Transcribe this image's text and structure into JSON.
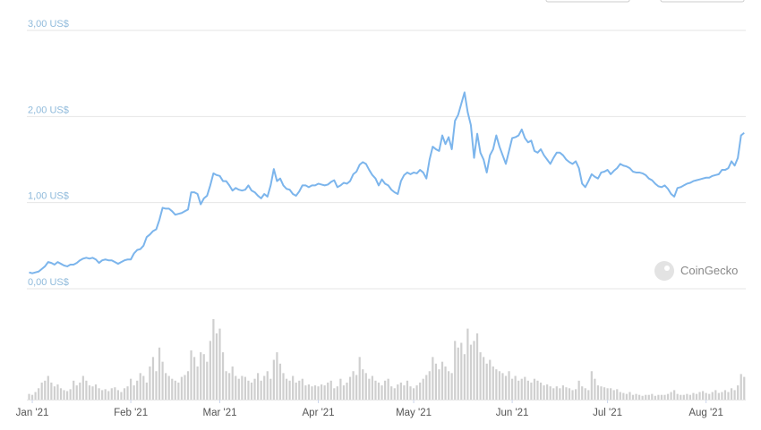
{
  "chart_data": {
    "type": "line",
    "series": [
      {
        "type": "line",
        "color": "#7cb5ec",
        "values": [
          0.19,
          0.18,
          0.19,
          0.2,
          0.23,
          0.26,
          0.31,
          0.3,
          0.28,
          0.31,
          0.29,
          0.27,
          0.26,
          0.28,
          0.28,
          0.3,
          0.33,
          0.35,
          0.36,
          0.35,
          0.36,
          0.34,
          0.3,
          0.33,
          0.34,
          0.33,
          0.33,
          0.31,
          0.29,
          0.31,
          0.33,
          0.34,
          0.34,
          0.41,
          0.45,
          0.46,
          0.5,
          0.6,
          0.63,
          0.67,
          0.69,
          0.8,
          0.94,
          0.93,
          0.93,
          0.9,
          0.86,
          0.87,
          0.88,
          0.9,
          0.92,
          1.12,
          1.12,
          1.1,
          0.98,
          1.05,
          1.08,
          1.2,
          1.34,
          1.32,
          1.31,
          1.25,
          1.25,
          1.2,
          1.14,
          1.17,
          1.15,
          1.14,
          1.15,
          1.2,
          1.14,
          1.12,
          1.08,
          1.05,
          1.1,
          1.07,
          1.2,
          1.39,
          1.25,
          1.28,
          1.2,
          1.16,
          1.15,
          1.1,
          1.08,
          1.13,
          1.2,
          1.2,
          1.18,
          1.2,
          1.2,
          1.22,
          1.21,
          1.2,
          1.21,
          1.24,
          1.26,
          1.18,
          1.2,
          1.23,
          1.22,
          1.25,
          1.33,
          1.36,
          1.44,
          1.47,
          1.45,
          1.38,
          1.32,
          1.28,
          1.2,
          1.27,
          1.22,
          1.2,
          1.15,
          1.12,
          1.1,
          1.25,
          1.32,
          1.35,
          1.33,
          1.35,
          1.34,
          1.38,
          1.35,
          1.28,
          1.5,
          1.65,
          1.62,
          1.6,
          1.78,
          1.68,
          1.76,
          1.62,
          1.95,
          2.02,
          2.15,
          2.28,
          2.05,
          1.9,
          1.52,
          1.8,
          1.58,
          1.5,
          1.35,
          1.55,
          1.62,
          1.78,
          1.65,
          1.55,
          1.45,
          1.6,
          1.75,
          1.76,
          1.78,
          1.85,
          1.75,
          1.7,
          1.72,
          1.6,
          1.58,
          1.62,
          1.55,
          1.5,
          1.45,
          1.52,
          1.58,
          1.58,
          1.55,
          1.5,
          1.47,
          1.45,
          1.48,
          1.4,
          1.22,
          1.18,
          1.25,
          1.33,
          1.3,
          1.28,
          1.35,
          1.36,
          1.38,
          1.33,
          1.37,
          1.4,
          1.45,
          1.43,
          1.42,
          1.4,
          1.36,
          1.35,
          1.35,
          1.34,
          1.32,
          1.28,
          1.26,
          1.22,
          1.19,
          1.18,
          1.2,
          1.16,
          1.1,
          1.07,
          1.17,
          1.18,
          1.2,
          1.22,
          1.23,
          1.25,
          1.26,
          1.27,
          1.28,
          1.29,
          1.29,
          1.31,
          1.32,
          1.33,
          1.38,
          1.38,
          1.4,
          1.48,
          1.43,
          1.52,
          1.78,
          1.81
        ]
      },
      {
        "type": "bar",
        "color": "#cfcfcf",
        "values": [
          6,
          5,
          8,
          12,
          18,
          20,
          25,
          18,
          14,
          16,
          12,
          10,
          9,
          11,
          20,
          15,
          18,
          25,
          20,
          15,
          14,
          16,
          12,
          10,
          11,
          9,
          12,
          13,
          10,
          8,
          12,
          14,
          22,
          15,
          20,
          28,
          25,
          18,
          35,
          45,
          30,
          55,
          40,
          28,
          25,
          22,
          20,
          18,
          24,
          26,
          30,
          52,
          45,
          35,
          50,
          48,
          40,
          62,
          85,
          70,
          75,
          50,
          30,
          28,
          35,
          25,
          22,
          25,
          24,
          20,
          18,
          22,
          28,
          20,
          25,
          30,
          22,
          42,
          50,
          38,
          28,
          22,
          20,
          25,
          18,
          20,
          22,
          15,
          16,
          14,
          15,
          14,
          16,
          15,
          18,
          20,
          12,
          14,
          22,
          15,
          18,
          24,
          30,
          26,
          45,
          32,
          28,
          22,
          25,
          20,
          18,
          15,
          20,
          22,
          14,
          12,
          16,
          18,
          15,
          20,
          14,
          12,
          15,
          18,
          22,
          26,
          30,
          45,
          38,
          32,
          40,
          35,
          30,
          28,
          62,
          55,
          60,
          48,
          75,
          58,
          62,
          70,
          50,
          45,
          38,
          42,
          35,
          32,
          30,
          28,
          25,
          30,
          22,
          25,
          20,
          22,
          24,
          20,
          18,
          22,
          20,
          18,
          15,
          16,
          14,
          12,
          14,
          12,
          15,
          13,
          12,
          10,
          11,
          20,
          14,
          12,
          10,
          30,
          22,
          15,
          14,
          13,
          12,
          12,
          10,
          11,
          8,
          7,
          6,
          8,
          5,
          6,
          5,
          4,
          5,
          5,
          6,
          4,
          5,
          5,
          5,
          6,
          8,
          10,
          6,
          5,
          5,
          6,
          5,
          7,
          6,
          8,
          9,
          7,
          6,
          8,
          10,
          7,
          8,
          10,
          8,
          12,
          10,
          15,
          27,
          24
        ]
      }
    ],
    "ylim": [
      0,
      3
    ],
    "yticks": [
      {
        "value": 0,
        "label": "0,00 US$"
      },
      {
        "value": 1,
        "label": "1,00 US$"
      },
      {
        "value": 2,
        "label": "2,00 US$"
      },
      {
        "value": 3,
        "label": "3,00 US$"
      }
    ],
    "xticks": [
      {
        "value": 1,
        "label": "Jan '21"
      },
      {
        "value": 32,
        "label": "Feb '21"
      },
      {
        "value": 60,
        "label": "Mar '21"
      },
      {
        "value": 91,
        "label": "Apr '21"
      },
      {
        "value": 121,
        "label": "May '21"
      },
      {
        "value": 152,
        "label": "Jun '21"
      },
      {
        "value": 182,
        "label": "Jul '21"
      },
      {
        "value": 213,
        "label": "Aug '21"
      }
    ],
    "grid": true,
    "watermark": "CoinGecko"
  }
}
